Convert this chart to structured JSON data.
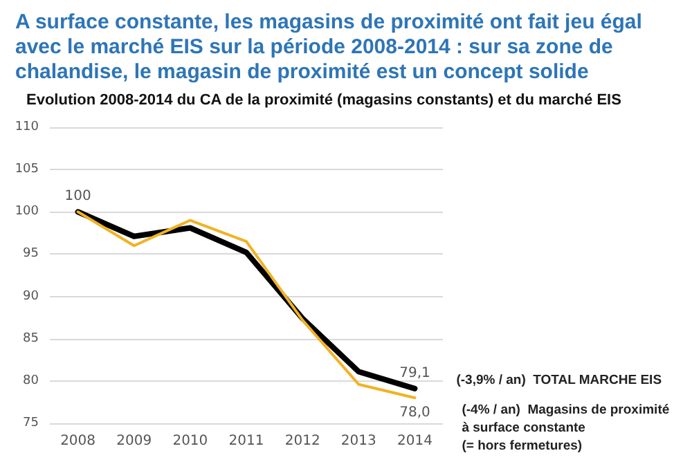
{
  "chart_data": {
    "type": "line",
    "title": "A surface constante, les magasins de proximité ont fait jeu égal avec le marché EIS sur la période 2008-2014 : sur sa zone de chalandise, le magasin de proximité est un concept solide",
    "subtitle": "Evolution 2008-2014 du CA de la proximité (magasins constants) et du marché EIS",
    "categories": [
      "2008",
      "2009",
      "2010",
      "2011",
      "2012",
      "2013",
      "2014"
    ],
    "series": [
      {
        "name": "(-3,9% / an)  TOTAL MARCHE EIS",
        "color": "#000000",
        "values": [
          100,
          97.1,
          98.1,
          95.2,
          87.4,
          81.1,
          79.1
        ],
        "value_labels": [
          "100",
          null,
          null,
          null,
          null,
          null,
          "79,1"
        ]
      },
      {
        "name": "(-4% / an)  Magasins de proximité\nà surface constante\n(= hors fermetures)",
        "color": "#f0b323",
        "values": [
          100,
          96.0,
          99.0,
          96.5,
          87.2,
          79.6,
          78.0
        ],
        "value_labels": [
          null,
          null,
          null,
          null,
          null,
          null,
          "78,0"
        ]
      }
    ],
    "ylim": [
      75,
      110
    ],
    "yticks": [
      75,
      80,
      85,
      90,
      95,
      100,
      105,
      110
    ],
    "grid": "y",
    "legend": false,
    "marker": "none",
    "line_style": "solid"
  }
}
